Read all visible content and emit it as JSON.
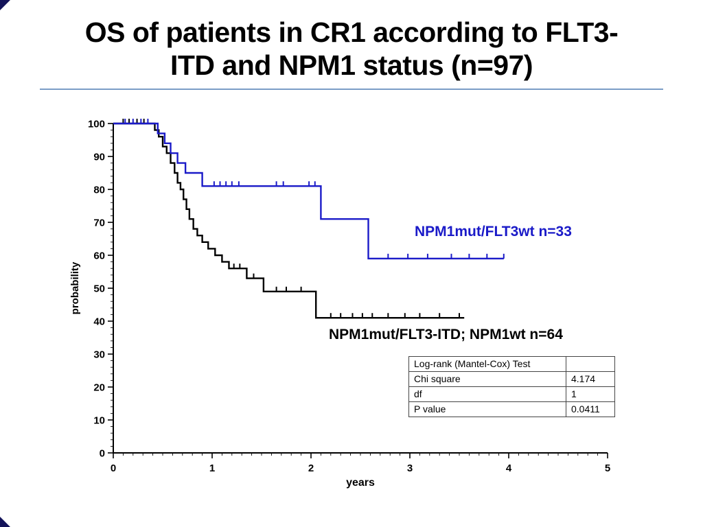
{
  "slide": {
    "title_line1": "OS of patients in CR1 according to FLT3-",
    "title_line2": "ITD and NPM1 status (n=97)",
    "accent_rule_color": "#7a9cc6"
  },
  "chart_data": {
    "type": "line",
    "subtype": "kaplan_meier_step",
    "title": "",
    "xlabel": "years",
    "ylabel": "probability",
    "xlim": [
      0,
      5
    ],
    "ylim": [
      0,
      100
    ],
    "x_ticks": [
      0,
      1,
      2,
      3,
      4,
      5
    ],
    "y_ticks": [
      0,
      10,
      20,
      30,
      40,
      50,
      60,
      70,
      80,
      90,
      100
    ],
    "x_minor_step": 0.1,
    "y_minor_step": 2,
    "grid": false,
    "series": [
      {
        "name": "NPM1mut/FLT3wt n=33",
        "color": "#1a1ac8",
        "end_x": 3.95,
        "steps": [
          [
            0,
            100
          ],
          [
            0.45,
            97
          ],
          [
            0.52,
            94
          ],
          [
            0.58,
            91
          ],
          [
            0.65,
            88
          ],
          [
            0.73,
            85
          ],
          [
            0.9,
            81
          ],
          [
            2.1,
            71
          ],
          [
            2.58,
            59
          ]
        ],
        "censors": [
          [
            0.12,
            100
          ],
          [
            0.2,
            100
          ],
          [
            0.28,
            100
          ],
          [
            0.35,
            100
          ],
          [
            1.02,
            81
          ],
          [
            1.08,
            81
          ],
          [
            1.14,
            81
          ],
          [
            1.2,
            81
          ],
          [
            1.27,
            81
          ],
          [
            1.65,
            81
          ],
          [
            1.72,
            81
          ],
          [
            1.98,
            81
          ],
          [
            2.04,
            81
          ],
          [
            2.78,
            59
          ],
          [
            2.98,
            59
          ],
          [
            3.18,
            59
          ],
          [
            3.42,
            59
          ],
          [
            3.6,
            59
          ],
          [
            3.78,
            59
          ],
          [
            3.95,
            59
          ]
        ]
      },
      {
        "name": "NPM1mut/FLT3-ITD; NPM1wt n=64",
        "color": "#000000",
        "end_x": 3.55,
        "steps": [
          [
            0,
            100
          ],
          [
            0.42,
            98
          ],
          [
            0.46,
            96
          ],
          [
            0.5,
            93
          ],
          [
            0.54,
            91
          ],
          [
            0.58,
            88
          ],
          [
            0.62,
            85
          ],
          [
            0.65,
            82
          ],
          [
            0.68,
            80
          ],
          [
            0.71,
            77
          ],
          [
            0.74,
            74
          ],
          [
            0.77,
            71
          ],
          [
            0.81,
            68
          ],
          [
            0.85,
            66
          ],
          [
            0.9,
            64
          ],
          [
            0.96,
            62
          ],
          [
            1.03,
            60
          ],
          [
            1.1,
            58
          ],
          [
            1.17,
            56
          ],
          [
            1.35,
            53
          ],
          [
            1.52,
            49
          ],
          [
            2.05,
            41
          ]
        ],
        "censors": [
          [
            0.1,
            100
          ],
          [
            0.16,
            100
          ],
          [
            0.24,
            100
          ],
          [
            0.31,
            100
          ],
          [
            1.22,
            56
          ],
          [
            1.28,
            56
          ],
          [
            1.42,
            53
          ],
          [
            1.65,
            49
          ],
          [
            1.75,
            49
          ],
          [
            1.9,
            49
          ],
          [
            2.2,
            41
          ],
          [
            2.3,
            41
          ],
          [
            2.42,
            41
          ],
          [
            2.52,
            41
          ],
          [
            2.62,
            41
          ],
          [
            2.78,
            41
          ],
          [
            2.95,
            41
          ],
          [
            3.1,
            41
          ],
          [
            3.3,
            41
          ],
          [
            3.5,
            41
          ]
        ]
      }
    ],
    "stats_table": {
      "rows": [
        [
          "Log-rank (Mantel-Cox) Test",
          ""
        ],
        [
          "Chi square",
          "4.174"
        ],
        [
          "df",
          "1"
        ],
        [
          "P value",
          "0.0411"
        ]
      ]
    }
  }
}
